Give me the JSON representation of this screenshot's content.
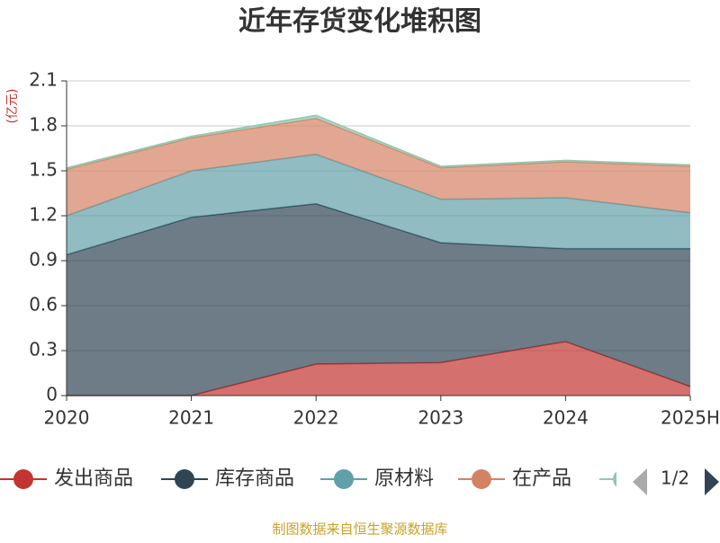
{
  "chart_data": {
    "type": "stacked-area",
    "title": "近年存货变化堆积图",
    "y_unit": "(亿元)",
    "categories": [
      "2020",
      "2021",
      "2022",
      "2023",
      "2024",
      "2025H"
    ],
    "series": [
      {
        "name": "发出商品",
        "color": "#c23531",
        "values": [
          0,
          0,
          0.21,
          0.22,
          0.36,
          0.06
        ]
      },
      {
        "name": "库存商品",
        "color": "#2f4554",
        "values": [
          0.94,
          1.19,
          1.07,
          0.8,
          0.62,
          0.92
        ]
      },
      {
        "name": "原材料",
        "color": "#61a0a8",
        "values": [
          0.26,
          0.31,
          0.33,
          0.29,
          0.34,
          0.24
        ]
      },
      {
        "name": "在产品",
        "color": "#d48265",
        "values": [
          0.31,
          0.22,
          0.24,
          0.21,
          0.24,
          0.31
        ]
      },
      {
        "color": "#91c7ae",
        "values": [
          0.01,
          0.01,
          0.02,
          0.01,
          0.01,
          0.01
        ]
      }
    ],
    "ylim": [
      0,
      2.1
    ],
    "yticks": [
      0,
      0.3,
      0.6,
      0.9,
      1.2,
      1.5,
      1.8,
      2.1
    ],
    "grid": true,
    "legend_page": "1/2",
    "source": "制图数据来自恒生聚源数据库"
  }
}
